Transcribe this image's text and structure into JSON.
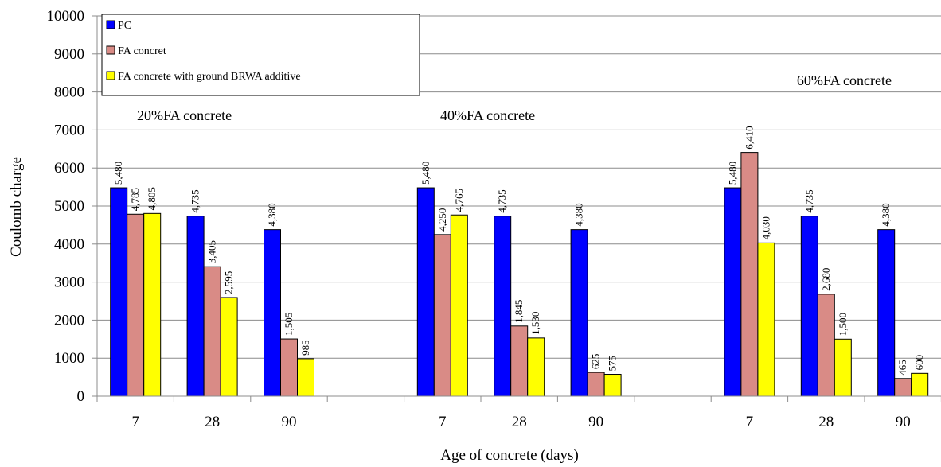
{
  "chart_data": {
    "type": "bar",
    "xlabel": "Age of concrete (days)",
    "ylabel": "Coulomb charge",
    "ylim": [
      0,
      10000
    ],
    "yticks": [
      "0",
      "1000",
      "2000",
      "3000",
      "4000",
      "5000",
      "6000",
      "7000",
      "8000",
      "9000",
      "10000"
    ],
    "grid": true,
    "legend_position": "top-left",
    "groups": [
      {
        "label": "20%FA concrete",
        "categories": [
          "7",
          "28",
          "90"
        ],
        "series": [
          {
            "name": "PC",
            "values": [
              5480,
              4735,
              4380
            ],
            "labels": [
              "5,480",
              "4,735",
              "4,380"
            ]
          },
          {
            "name": "FA concret",
            "values": [
              4785,
              3405,
              1505
            ],
            "labels": [
              "4,785",
              "3,405",
              "1,505"
            ]
          },
          {
            "name": "FA concrete with ground BRWA additive",
            "values": [
              4805,
              2595,
              985
            ],
            "labels": [
              "4,805",
              "2,595",
              "985"
            ]
          }
        ]
      },
      {
        "label": "40%FA concrete",
        "categories": [
          "7",
          "28",
          "90"
        ],
        "series": [
          {
            "name": "PC",
            "values": [
              5480,
              4735,
              4380
            ],
            "labels": [
              "5,480",
              "4,735",
              "4,380"
            ]
          },
          {
            "name": "FA concret",
            "values": [
              4250,
              1845,
              625
            ],
            "labels": [
              "4,250",
              "1,845",
              "625"
            ]
          },
          {
            "name": "FA concrete with ground BRWA additive",
            "values": [
              4765,
              1530,
              575
            ],
            "labels": [
              "4,765",
              "1,530",
              "575"
            ]
          }
        ]
      },
      {
        "label": "60%FA concrete",
        "categories": [
          "7",
          "28",
          "90"
        ],
        "series": [
          {
            "name": "PC",
            "values": [
              5480,
              4735,
              4380
            ],
            "labels": [
              "5,480",
              "4,735",
              "4,380"
            ]
          },
          {
            "name": "FA concret",
            "values": [
              6410,
              2680,
              465
            ],
            "labels": [
              "6,410",
              "2,680",
              "465"
            ]
          },
          {
            "name": "FA concrete with ground BRWA additive",
            "values": [
              4030,
              1500,
              600
            ],
            "labels": [
              "4,030",
              "1,500",
              "600"
            ]
          }
        ]
      }
    ],
    "legend": [
      {
        "name": "PC",
        "color": "#0000ff"
      },
      {
        "name": "FA concret",
        "color": "#d98b86"
      },
      {
        "name": "FA concrete with ground BRWA additive",
        "color": "#ffff00"
      }
    ]
  }
}
